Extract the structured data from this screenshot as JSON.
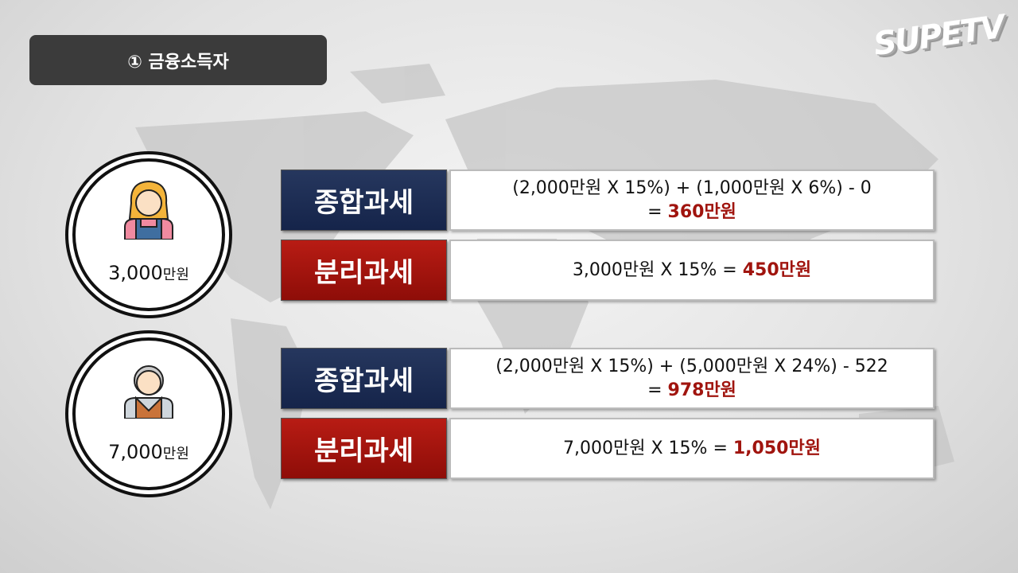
{
  "title": "① 금융소득자",
  "logo": "SUPETV",
  "colors": {
    "navy": "#1c2b4f",
    "red": "#a01410",
    "result": "#a0140e",
    "title_bg": "#3b3b3b"
  },
  "cases": [
    {
      "avatar": "woman-icon",
      "amount": "3,000",
      "unit": "만원",
      "combined": {
        "label": "종합과세",
        "line1": "(2,000만원 X 15%) + (1,000만원 X 6%) - 0",
        "eq": "= ",
        "result": "360만원"
      },
      "separate": {
        "label": "분리과세",
        "expr": "3,000만원 X 15% = ",
        "result": "450만원"
      }
    },
    {
      "avatar": "old-man-icon",
      "amount": "7,000",
      "unit": "만원",
      "combined": {
        "label": "종합과세",
        "line1": "(2,000만원 X 15%) + (5,000만원 X 24%) - 522",
        "eq": "= ",
        "result": "978만원"
      },
      "separate": {
        "label": "분리과세",
        "expr": "7,000만원 X 15% = ",
        "result": "1,050만원"
      }
    }
  ]
}
